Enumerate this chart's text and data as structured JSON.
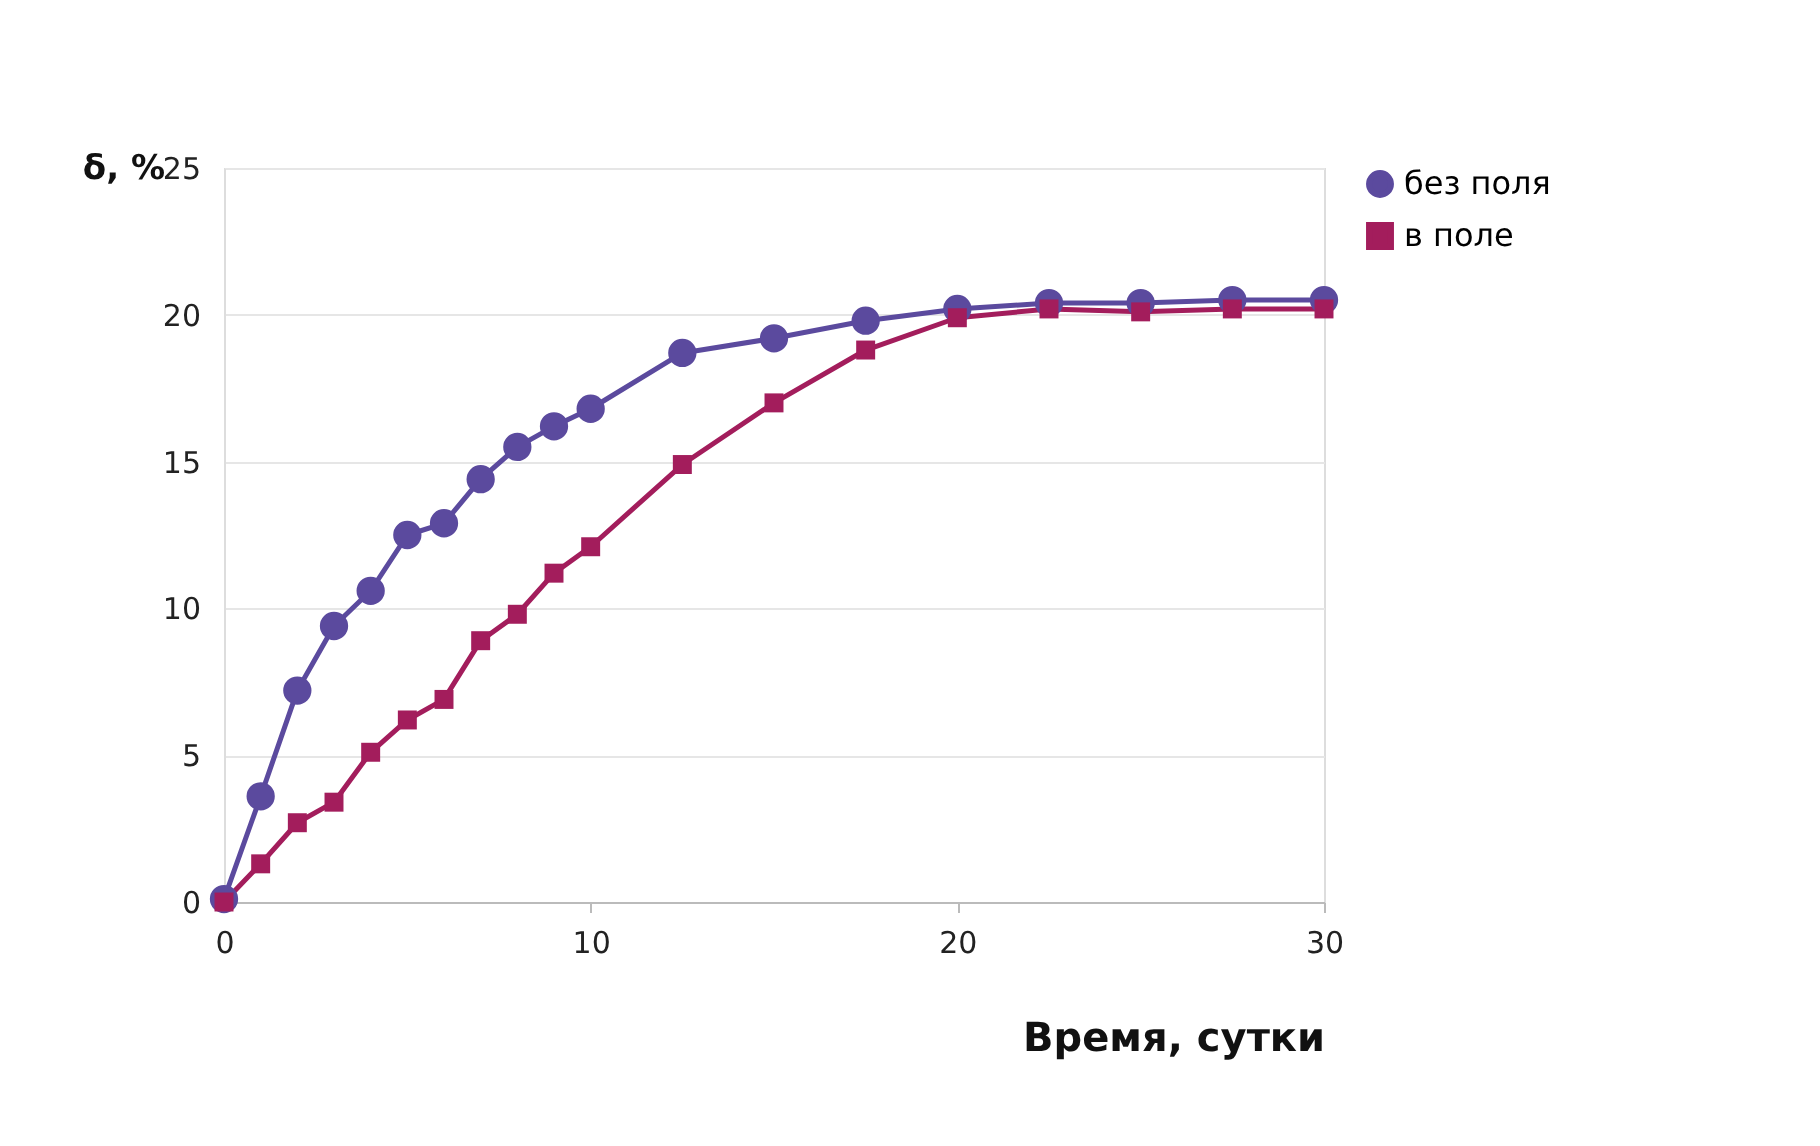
{
  "chart_data": {
    "type": "line",
    "xlabel": "Время,  сутки",
    "ylabel": "δ, %",
    "x": [
      0,
      1,
      2,
      3,
      4,
      5,
      6,
      7,
      8,
      9,
      10,
      12.5,
      15,
      17.5,
      20,
      22.5,
      25,
      27.5,
      30
    ],
    "series": [
      {
        "name": "без  поля",
        "color": "#5b4a9e",
        "marker": "circle",
        "values": [
          0.1,
          3.6,
          7.2,
          9.4,
          10.6,
          12.5,
          12.9,
          14.4,
          15.5,
          16.2,
          16.8,
          18.7,
          19.2,
          19.8,
          20.2,
          20.4,
          20.4,
          20.5,
          20.5
        ]
      },
      {
        "name": "в поле",
        "color": "#a31d5c",
        "marker": "square",
        "values": [
          0,
          1.3,
          2.7,
          3.4,
          5.1,
          6.2,
          6.9,
          8.9,
          9.8,
          11.2,
          12.1,
          14.9,
          17.0,
          18.8,
          19.9,
          20.2,
          20.1,
          20.2,
          20.2
        ]
      }
    ],
    "xlim": [
      0,
      30
    ],
    "xticks": [
      0,
      10,
      20,
      30
    ],
    "ylim": [
      0,
      25
    ],
    "yticks": [
      0,
      5,
      10,
      15,
      20,
      25
    ],
    "grid": "y",
    "legend": "right",
    "line_style": "solid"
  }
}
